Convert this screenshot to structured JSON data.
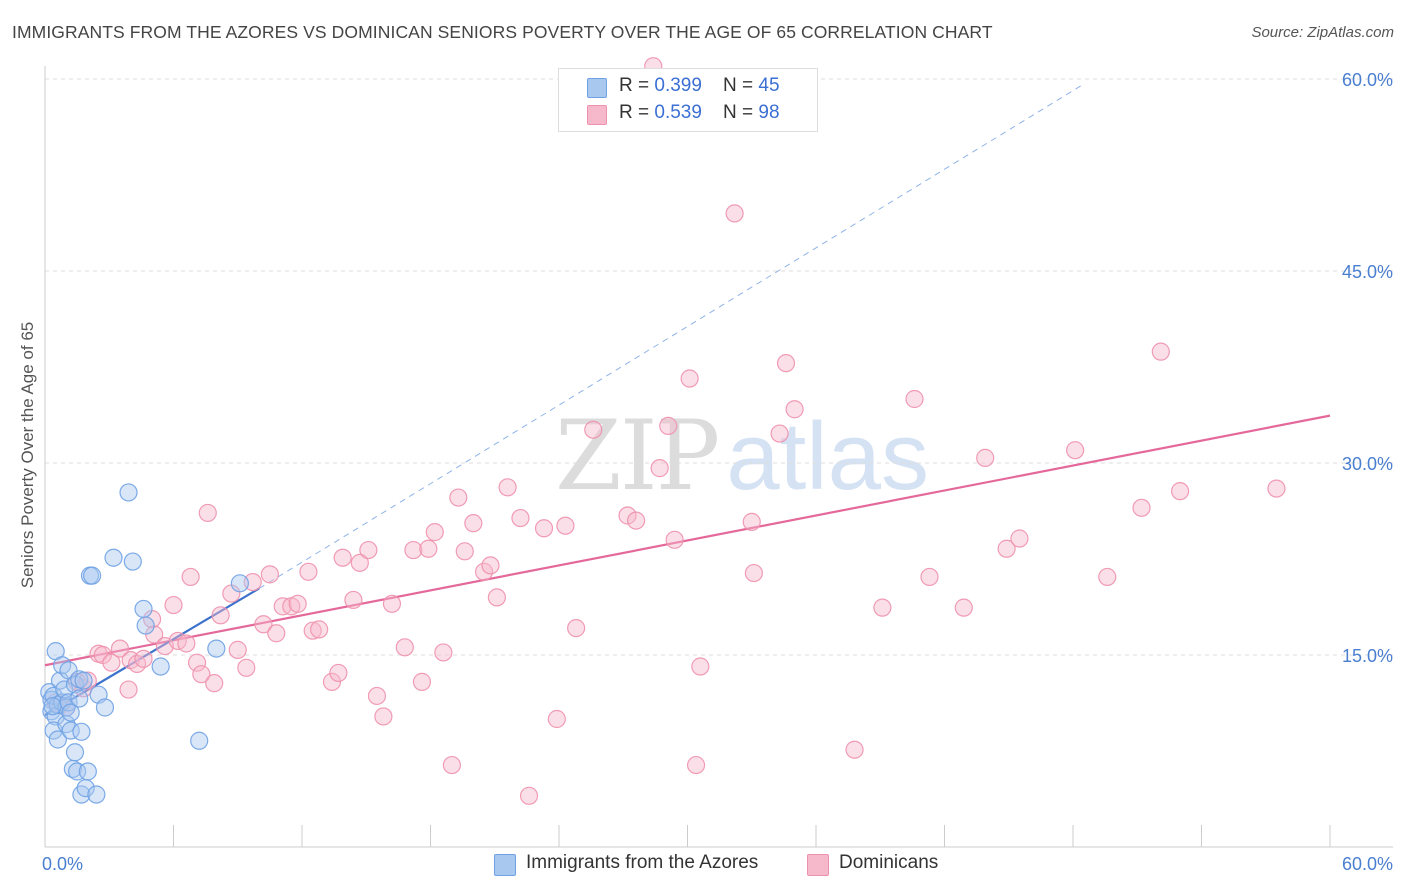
{
  "title": "IMMIGRANTS FROM THE AZORES VS DOMINICAN SENIORS POVERTY OVER THE AGE OF 65 CORRELATION CHART",
  "source": "Source: ZipAtlas.com",
  "watermark": {
    "zip": "ZIP",
    "atlas": "atlas"
  },
  "legend": {
    "rows": [
      {
        "r_label": "R = ",
        "r_value": "0.399",
        "n_label": "N = ",
        "n_value": "45",
        "color": "#a9c8f0"
      },
      {
        "r_label": "R = ",
        "r_value": "0.539",
        "n_label": "N = ",
        "n_value": "98",
        "color": "#f6b8cb"
      }
    ]
  },
  "bottom_legend": [
    {
      "label": "Immigrants from the Azores",
      "color": "#a9c8f0"
    },
    {
      "label": "Dominicans",
      "color": "#f6b8cb"
    }
  ],
  "chart_data": {
    "type": "scatter",
    "title": "IMMIGRANTS FROM THE AZORES VS DOMINICAN SENIORS POVERTY OVER THE AGE OF 65 CORRELATION CHART",
    "xlabel": "",
    "ylabel": "Seniors Poverty Over the Age of 65",
    "xlim": [
      0,
      60
    ],
    "ylim": [
      0,
      60
    ],
    "x_tick_labels": [
      "0.0%",
      "60.0%"
    ],
    "y_ticks": [
      15,
      30,
      45,
      60
    ],
    "y_tick_labels": [
      "15.0%",
      "30.0%",
      "45.0%",
      "60.0%"
    ],
    "grid": true,
    "series": [
      {
        "name": "Immigrants from the Azores",
        "color": "#6fa2e4",
        "fill": "#a9c8f0",
        "trend_color": "#3d72cc",
        "trend": {
          "x1": 0.0,
          "y1": 10.3,
          "x2": 10.0,
          "y2": 20.2
        },
        "trend_dashed": {
          "x1": 10.0,
          "y1": 20.2,
          "x2": 48.5,
          "y2": 59.6
        },
        "points": [
          [
            0.2,
            12.1
          ],
          [
            0.3,
            11.5
          ],
          [
            0.3,
            10.6
          ],
          [
            0.4,
            11.8
          ],
          [
            0.5,
            10.2
          ],
          [
            0.4,
            9.1
          ],
          [
            0.5,
            15.3
          ],
          [
            0.6,
            11.1
          ],
          [
            0.7,
            13.0
          ],
          [
            0.6,
            8.4
          ],
          [
            0.8,
            11.3
          ],
          [
            0.8,
            14.2
          ],
          [
            0.9,
            12.3
          ],
          [
            1.0,
            10.9
          ],
          [
            1.0,
            9.6
          ],
          [
            1.1,
            13.8
          ],
          [
            1.1,
            11.3
          ],
          [
            1.2,
            10.5
          ],
          [
            1.2,
            9.1
          ],
          [
            1.3,
            6.1
          ],
          [
            1.4,
            7.4
          ],
          [
            1.4,
            12.7
          ],
          [
            1.5,
            5.9
          ],
          [
            1.6,
            13.1
          ],
          [
            1.6,
            11.6
          ],
          [
            1.7,
            9.0
          ],
          [
            1.7,
            4.1
          ],
          [
            1.8,
            13.0
          ],
          [
            1.9,
            4.6
          ],
          [
            2.0,
            5.9
          ],
          [
            2.1,
            21.2
          ],
          [
            2.2,
            21.2
          ],
          [
            2.4,
            4.1
          ],
          [
            2.5,
            11.9
          ],
          [
            2.8,
            10.9
          ],
          [
            3.2,
            22.6
          ],
          [
            3.9,
            27.7
          ],
          [
            4.1,
            22.3
          ],
          [
            4.6,
            18.6
          ],
          [
            4.7,
            17.3
          ],
          [
            5.4,
            14.1
          ],
          [
            7.2,
            8.3
          ],
          [
            8.0,
            15.5
          ],
          [
            9.1,
            20.6
          ],
          [
            0.35,
            11.0
          ]
        ]
      },
      {
        "name": "Dominicans",
        "color": "#ee91ad",
        "fill": "#f6b8cb",
        "trend_color": "#e4699a",
        "trend": {
          "x1": 0.0,
          "y1": 14.2,
          "x2": 60.0,
          "y2": 33.7
        },
        "points": [
          [
            0.5,
            11.3
          ],
          [
            0.7,
            11.1
          ],
          [
            1.0,
            10.9
          ],
          [
            1.5,
            12.9
          ],
          [
            1.8,
            12.4
          ],
          [
            2.0,
            13.0
          ],
          [
            2.5,
            15.1
          ],
          [
            2.7,
            15.0
          ],
          [
            3.1,
            14.4
          ],
          [
            3.5,
            15.5
          ],
          [
            3.9,
            12.3
          ],
          [
            4.0,
            14.6
          ],
          [
            4.3,
            14.3
          ],
          [
            4.6,
            14.7
          ],
          [
            5.0,
            17.8
          ],
          [
            5.1,
            16.6
          ],
          [
            5.6,
            15.7
          ],
          [
            6.0,
            18.9
          ],
          [
            6.2,
            16.1
          ],
          [
            6.6,
            15.9
          ],
          [
            6.8,
            21.1
          ],
          [
            7.1,
            14.4
          ],
          [
            7.3,
            13.5
          ],
          [
            7.6,
            26.1
          ],
          [
            7.9,
            12.8
          ],
          [
            8.2,
            18.1
          ],
          [
            8.7,
            19.8
          ],
          [
            9.0,
            15.4
          ],
          [
            9.4,
            14.0
          ],
          [
            9.7,
            20.7
          ],
          [
            10.2,
            17.4
          ],
          [
            10.5,
            21.3
          ],
          [
            10.8,
            16.7
          ],
          [
            11.1,
            18.8
          ],
          [
            11.5,
            18.8
          ],
          [
            11.8,
            19.0
          ],
          [
            12.3,
            21.5
          ],
          [
            12.5,
            16.9
          ],
          [
            12.8,
            17.0
          ],
          [
            13.4,
            12.9
          ],
          [
            13.7,
            13.6
          ],
          [
            13.9,
            22.6
          ],
          [
            14.4,
            19.3
          ],
          [
            14.7,
            22.2
          ],
          [
            15.1,
            23.2
          ],
          [
            15.5,
            11.8
          ],
          [
            15.8,
            10.2
          ],
          [
            16.2,
            19.0
          ],
          [
            16.8,
            15.6
          ],
          [
            17.2,
            23.2
          ],
          [
            17.6,
            12.9
          ],
          [
            17.9,
            23.3
          ],
          [
            18.2,
            24.6
          ],
          [
            18.6,
            15.2
          ],
          [
            19.0,
            6.4
          ],
          [
            19.3,
            27.3
          ],
          [
            19.6,
            23.1
          ],
          [
            20.0,
            25.3
          ],
          [
            20.5,
            21.5
          ],
          [
            20.8,
            22.0
          ],
          [
            21.1,
            19.5
          ],
          [
            21.6,
            28.1
          ],
          [
            22.2,
            25.7
          ],
          [
            22.6,
            4.0
          ],
          [
            23.3,
            24.9
          ],
          [
            23.9,
            10.0
          ],
          [
            24.3,
            25.1
          ],
          [
            24.8,
            17.1
          ],
          [
            25.6,
            32.6
          ],
          [
            27.2,
            25.9
          ],
          [
            27.6,
            25.5
          ],
          [
            28.7,
            29.6
          ],
          [
            29.1,
            32.9
          ],
          [
            29.4,
            24.0
          ],
          [
            30.1,
            36.6
          ],
          [
            30.4,
            6.4
          ],
          [
            30.6,
            14.1
          ],
          [
            32.2,
            49.5
          ],
          [
            33.0,
            25.4
          ],
          [
            33.1,
            21.4
          ],
          [
            34.3,
            32.3
          ],
          [
            34.6,
            37.8
          ],
          [
            35.0,
            34.2
          ],
          [
            37.8,
            7.6
          ],
          [
            39.1,
            18.7
          ],
          [
            40.6,
            35.0
          ],
          [
            41.3,
            21.1
          ],
          [
            42.9,
            18.7
          ],
          [
            43.9,
            30.4
          ],
          [
            44.9,
            23.3
          ],
          [
            45.5,
            24.1
          ],
          [
            48.1,
            31.0
          ],
          [
            49.6,
            21.1
          ],
          [
            51.2,
            26.5
          ],
          [
            52.1,
            38.7
          ],
          [
            53.0,
            27.8
          ],
          [
            57.5,
            28.0
          ],
          [
            28.4,
            61.0
          ]
        ]
      }
    ]
  }
}
